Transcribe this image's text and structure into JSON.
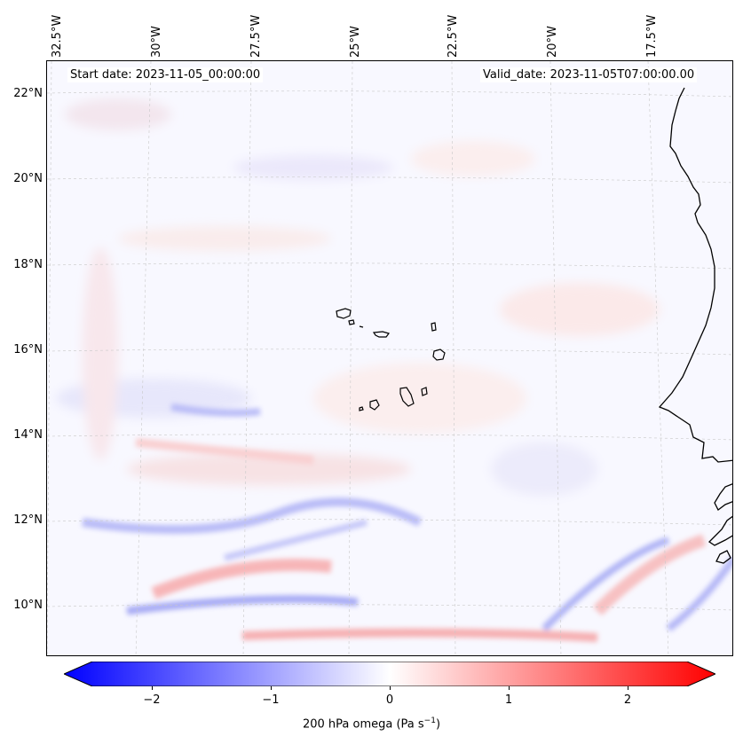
{
  "header": {
    "start_date": "Start date: 2023-11-05_00:00:00",
    "valid_date": "Valid_date: 2023-11-05T07:00:00.00"
  },
  "lon_labels": [
    "32.5°W",
    "30°W",
    "27.5°W",
    "25°W",
    "22.5°W",
    "20°W",
    "17.5°W"
  ],
  "lat_labels": [
    "22°N",
    "20°N",
    "18°N",
    "16°N",
    "14°N",
    "12°N",
    "10°N"
  ],
  "colorbar": {
    "ticks": [
      "−2",
      "−1",
      "0",
      "1",
      "2"
    ],
    "label": "200 hPa omega (Pa s",
    "label_sup": "−1",
    "label_end": ")",
    "min_color": "#0000ff",
    "mid_color": "#ffffff",
    "max_color": "#ff0000"
  },
  "map": {
    "background_color": "#f8f8ff",
    "coast_color": "#000000",
    "grid_color": "#c8c8c8"
  }
}
